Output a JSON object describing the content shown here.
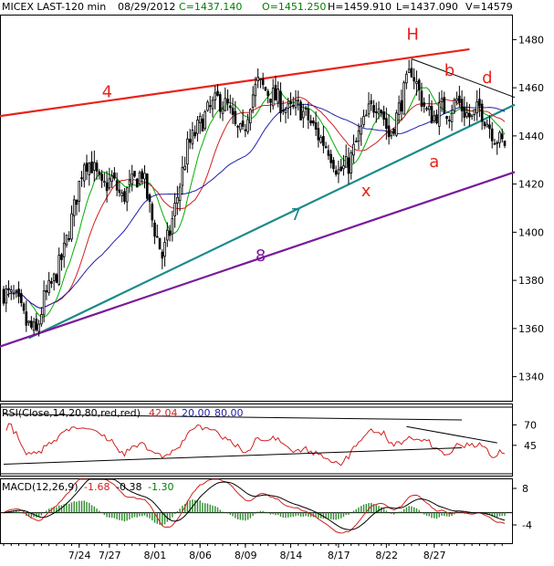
{
  "header": {
    "symbol": "MICEX LAST-120 min",
    "date": "08/29/2012",
    "close": "C=1437.140",
    "open": "O=1451.250",
    "high": "H=1459.910",
    "low": "L=1437.090",
    "volume": "V=14579",
    "colors": {
      "symbol": "#000000",
      "date": "#000000",
      "close": "#008000",
      "open": "#008000",
      "high": "#000000",
      "low": "#000000",
      "volume": "#000000"
    }
  },
  "rsi_header": {
    "label": "RSI(Close,14,20,80,red,red)",
    "value": "42.04",
    "lower": "20.00",
    "upper": "80.00"
  },
  "macd_header": {
    "label": "MACD(12,26,9)",
    "v1": "-1.68",
    "v2": "-0.38",
    "v3": "-1.30"
  },
  "chart_data": {
    "type": "candlestick",
    "price_axis": {
      "ylim": [
        1330,
        1490
      ],
      "ticks": [
        1340,
        1360,
        1380,
        1400,
        1420,
        1440,
        1460,
        1480
      ]
    },
    "rsi_axis": {
      "ylim": [
        8,
        95
      ],
      "ticks": [
        45,
        70
      ]
    },
    "macd_axis": {
      "ylim": [
        -10,
        11
      ],
      "ticks": [
        8,
        -4
      ]
    },
    "x_labels": [
      "7/24",
      "7/27",
      "8/01",
      "8/06",
      "8/09",
      "8/14",
      "8/17",
      "8/22",
      "8/27"
    ],
    "anchors": [
      [
        0,
        1375
      ],
      [
        5,
        1372
      ],
      [
        9,
        1362
      ],
      [
        13,
        1358
      ],
      [
        16,
        1372
      ],
      [
        20,
        1380
      ],
      [
        24,
        1392
      ],
      [
        28,
        1410
      ],
      [
        32,
        1430
      ],
      [
        35,
        1428
      ],
      [
        39,
        1418
      ],
      [
        43,
        1422
      ],
      [
        47,
        1414
      ],
      [
        51,
        1420
      ],
      [
        55,
        1425
      ],
      [
        59,
        1405
      ],
      [
        63,
        1390
      ],
      [
        66,
        1400
      ],
      [
        69,
        1415
      ],
      [
        73,
        1435
      ],
      [
        77,
        1443
      ],
      [
        81,
        1450
      ],
      [
        85,
        1455
      ],
      [
        89,
        1452
      ],
      [
        92,
        1443
      ],
      [
        95,
        1440
      ],
      [
        98,
        1455
      ],
      [
        101,
        1462
      ],
      [
        105,
        1458
      ],
      [
        109,
        1455
      ],
      [
        113,
        1450
      ],
      [
        117,
        1452
      ],
      [
        121,
        1447
      ],
      [
        125,
        1440
      ],
      [
        129,
        1435
      ],
      [
        133,
        1425
      ],
      [
        137,
        1428
      ],
      [
        141,
        1440
      ],
      [
        145,
        1450
      ],
      [
        149,
        1455
      ],
      [
        153,
        1440
      ],
      [
        156,
        1448
      ],
      [
        159,
        1458
      ],
      [
        162,
        1468
      ],
      [
        165,
        1458
      ],
      [
        168,
        1450
      ],
      [
        171,
        1448
      ],
      [
        174,
        1452
      ],
      [
        177,
        1450
      ],
      [
        180,
        1455
      ],
      [
        183,
        1450
      ],
      [
        186,
        1447
      ],
      [
        189,
        1452
      ],
      [
        192,
        1446
      ],
      [
        195,
        1440
      ],
      [
        198,
        1437
      ]
    ],
    "trendlines": [
      {
        "name": "4",
        "color": "#e8231a",
        "p1": [
          -3,
          1448
        ],
        "p2": [
          185,
          1476
        ]
      },
      {
        "name": "7",
        "color": "#1a8a8a",
        "p1": [
          10,
          1356
        ],
        "p2": [
          203,
          1453
        ]
      },
      {
        "name": "8",
        "color": "#7a1a9a",
        "p1": [
          -3,
          1352
        ],
        "p2": [
          203,
          1425
        ]
      },
      {
        "name": "",
        "color": "#000000",
        "p1": [
          162,
          1472
        ],
        "p2": [
          203,
          1456
        ]
      }
    ],
    "annotations": [
      {
        "text": "4",
        "x": 39,
        "y": 1456,
        "color": "#e8231a"
      },
      {
        "text": "7",
        "x": 114,
        "y": 1405,
        "color": "#1a8a8a"
      },
      {
        "text": "8",
        "x": 100,
        "y": 1388,
        "color": "#7a1a9a"
      },
      {
        "text": "H",
        "x": 160,
        "y": 1480,
        "color": "#e8231a"
      },
      {
        "text": "b",
        "x": 175,
        "y": 1465,
        "color": "#e8231a"
      },
      {
        "text": "d",
        "x": 190,
        "y": 1462,
        "color": "#e8231a"
      },
      {
        "text": "a",
        "x": 169,
        "y": 1427,
        "color": "#e8231a"
      },
      {
        "text": "x",
        "x": 142,
        "y": 1415,
        "color": "#e8231a"
      }
    ],
    "moving_averages": [
      {
        "period": 5,
        "color": "#00b000"
      },
      {
        "period": 10,
        "color": "#d02020"
      },
      {
        "period": 20,
        "color": "#2020b0"
      }
    ]
  }
}
